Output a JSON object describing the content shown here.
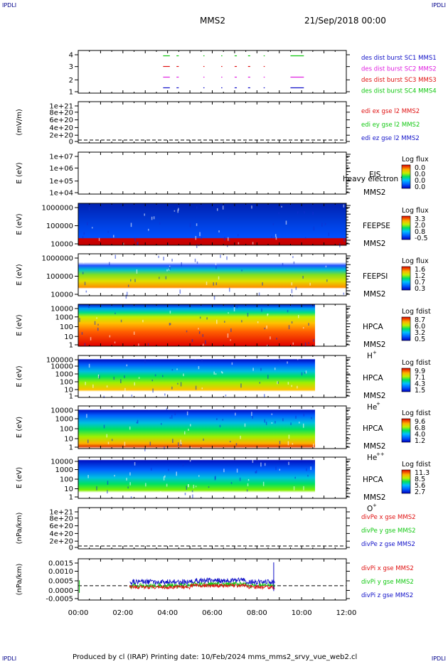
{
  "corners": {
    "tl": "IPDLI",
    "tr": "IPDLI",
    "bl": "IPDLI",
    "br": "IPDLI"
  },
  "header": {
    "spacecraft": "MMS2",
    "date": "21/Sep/2018 00:00"
  },
  "footer": {
    "text": "Produced by cl (IRAP)   Printing date: 10/Feb/2024   mms_mms2_srvy_vue_web2.cl"
  },
  "time_axis": {
    "labels": [
      "00:00",
      "02:00",
      "04:00",
      "06:00",
      "08:00",
      "10:00",
      "12:00"
    ],
    "range_hours": [
      0,
      12
    ]
  },
  "colors": {
    "des1": "#1010c8",
    "des2": "#e020e0",
    "des3": "#e01010",
    "des4": "#10c810",
    "ex": "#e01010",
    "ey": "#10c810",
    "ez": "#1010c8"
  },
  "chart_data": [
    {
      "type": "line",
      "id": "burst",
      "ylabel": "",
      "ylim": [
        0.5,
        4.5
      ],
      "yticks": [
        "1",
        "2",
        "3",
        "4"
      ],
      "legend": [
        "des dist burst SC1 MMS1",
        "des dist burst SC2 MMS2",
        "des dist burst SC3 MMS3",
        "des dist burst SC4 MMS4"
      ],
      "series": [
        {
          "level": 4,
          "intervals": [
            [
              3.8,
              4.1
            ],
            [
              4.4,
              4.5
            ],
            [
              5.6,
              5.65
            ],
            [
              6.4,
              6.45
            ],
            [
              7.0,
              7.1
            ],
            [
              7.6,
              7.7
            ],
            [
              8.3,
              8.35
            ],
            [
              9.5,
              10.1
            ]
          ]
        },
        {
          "level": 3,
          "intervals": [
            [
              3.8,
              4.1
            ],
            [
              4.4,
              4.5
            ],
            [
              5.6,
              5.65
            ],
            [
              6.4,
              6.45
            ],
            [
              7.0,
              7.1
            ],
            [
              7.6,
              7.7
            ],
            [
              8.3,
              8.35
            ]
          ]
        },
        {
          "level": 2,
          "intervals": [
            [
              3.8,
              4.1
            ],
            [
              4.4,
              4.5
            ],
            [
              5.6,
              5.65
            ],
            [
              6.4,
              6.45
            ],
            [
              7.0,
              7.1
            ],
            [
              7.6,
              7.7
            ],
            [
              8.3,
              8.35
            ],
            [
              9.5,
              10.1
            ]
          ]
        },
        {
          "level": 1,
          "intervals": [
            [
              3.8,
              4.1
            ],
            [
              4.4,
              4.5
            ],
            [
              5.6,
              5.65
            ],
            [
              6.4,
              6.45
            ],
            [
              7.0,
              7.1
            ],
            [
              7.6,
              7.7
            ],
            [
              8.3,
              8.35
            ],
            [
              9.5,
              10.1
            ]
          ]
        }
      ]
    },
    {
      "type": "line",
      "id": "edi",
      "ylabel": "(mV/m)",
      "yticks": [
        "0",
        "2e+20",
        "4e+20",
        "6e+20",
        "8e+20",
        "1e+21"
      ],
      "legend": [
        "edi ex gse l2 MMS2",
        "edi ey gse l2 MMS2",
        "edi ez gse l2 MMS2"
      ],
      "zero_line": true
    },
    {
      "type": "heatmap",
      "id": "eis",
      "ylabel": "E (eV)",
      "yticks": [
        "1e+04",
        "1e+05",
        "1e+06",
        "1e+07"
      ],
      "instrument": "EIS",
      "overlay": "heavy electron to",
      "sc": "MMS2",
      "colorbar": {
        "title": "Log flux",
        "ticks": [
          "0.0",
          "0.0",
          "0.0",
          "0.0"
        ]
      }
    },
    {
      "type": "heatmap",
      "id": "feepse",
      "ylabel": "E (eV)",
      "yticks": [
        "10000",
        "100000",
        "1000000"
      ],
      "instrument": "FEEPSE",
      "sc": "MMS2",
      "colorbar": {
        "title": "Log flux",
        "ticks": [
          "3.3",
          "2.0",
          "0.8",
          "-0.5"
        ]
      },
      "time_range": [
        0,
        12
      ]
    },
    {
      "type": "heatmap",
      "id": "feepsi",
      "ylabel": "E (eV)",
      "yticks": [
        "10000",
        "100000",
        "1000000"
      ],
      "instrument": "FEEPSI",
      "sc": "MMS2",
      "colorbar": {
        "title": "Log flux",
        "ticks": [
          "1.6",
          "1.2",
          "0.7",
          "0.3"
        ]
      },
      "time_range": [
        0,
        12
      ]
    },
    {
      "type": "heatmap",
      "id": "hpca_h",
      "ylabel": "E (eV)",
      "yticks": [
        "1",
        "10",
        "100",
        "1000",
        "10000"
      ],
      "instrument": "HPCA",
      "sc": "MMS2",
      "species": "H",
      "charge": "+",
      "colorbar": {
        "title": "Log fdist",
        "ticks": [
          "8.7",
          "6.0",
          "3.2",
          "0.5"
        ]
      },
      "time_range": [
        0,
        10.6
      ]
    },
    {
      "type": "heatmap",
      "id": "hpca_he",
      "ylabel": "E (eV)",
      "yticks": [
        "1",
        "10",
        "100",
        "1000",
        "10000",
        "100000"
      ],
      "instrument": "HPCA",
      "sc": "MMS2",
      "species": "He",
      "charge": "+",
      "colorbar": {
        "title": "Log fdist",
        "ticks": [
          "9.9",
          "7.1",
          "4.3",
          "1.5"
        ]
      },
      "time_range": [
        0,
        10.6
      ]
    },
    {
      "type": "heatmap",
      "id": "hpca_hepp",
      "ylabel": "E (eV)",
      "yticks": [
        "1",
        "10",
        "100",
        "1000",
        "10000"
      ],
      "instrument": "HPCA",
      "sc": "MMS2",
      "species": "He",
      "charge": "++",
      "colorbar": {
        "title": "Log fdist",
        "ticks": [
          "9.6",
          "6.8",
          "4.0",
          "1.2"
        ]
      },
      "time_range": [
        0,
        10.6
      ]
    },
    {
      "type": "heatmap",
      "id": "hpca_o",
      "ylabel": "E (eV)",
      "yticks": [
        "1",
        "10",
        "100",
        "1000",
        "10000"
      ],
      "instrument": "HPCA",
      "sc": "MMS2",
      "species": "O",
      "charge": "+",
      "colorbar": {
        "title": "Log fdist",
        "ticks": [
          "11.3",
          "8.5",
          "5.6",
          "2.7"
        ]
      },
      "time_range": [
        0,
        10.6
      ]
    },
    {
      "type": "line",
      "id": "divpe",
      "ylabel": "(nPa/km)",
      "yticks": [
        "0",
        "2e+20",
        "4e+20",
        "6e+20",
        "8e+20",
        "1e+21"
      ],
      "legend": [
        "divPe x gse MMS2",
        "divPe y gse MMS2",
        "divPe z gse MMS2"
      ],
      "zero_line": true
    },
    {
      "type": "line",
      "id": "divpi",
      "ylabel": "(nPa/km)",
      "yticks": [
        "-0.0005",
        "0.0000",
        "0.0005",
        "0.0010",
        "0.0015"
      ],
      "ylim": [
        -0.0008,
        0.0015
      ],
      "legend": [
        "divPi x gse MMS2",
        "divPi y gse MMS2",
        "divPi z gse MMS2"
      ],
      "zero_line": true,
      "time_range": [
        2.3,
        8.8
      ]
    }
  ]
}
